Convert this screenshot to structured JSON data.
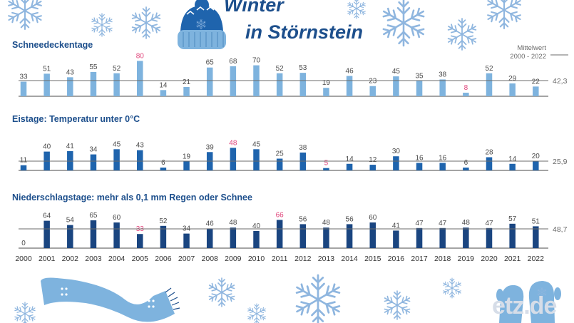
{
  "title": {
    "line1": "Winter",
    "line2": "in Störnstein"
  },
  "mean_caption": {
    "line1": "Mittelwert",
    "line2": "2000 - 2022"
  },
  "watermark": "etz.de",
  "colors": {
    "title": "#1d4f8c",
    "series1": "#7eb3de",
    "series2": "#1f64ad",
    "series3": "#1a4580",
    "highlight": "#e0457b",
    "axis": "#4a4a4a",
    "snowflake": "#8fb6df"
  },
  "chart_data": [
    {
      "type": "bar",
      "title": "Schneedeckentage",
      "categories": [
        "2000",
        "2001",
        "2002",
        "2003",
        "2004",
        "2005",
        "2006",
        "2007",
        "2008",
        "2009",
        "2010",
        "2011",
        "2012",
        "2013",
        "2014",
        "2015",
        "2016",
        "2017",
        "2018",
        "2019",
        "2020",
        "2021",
        "2022"
      ],
      "values": [
        33,
        51,
        43,
        55,
        52,
        80,
        14,
        21,
        65,
        68,
        70,
        52,
        53,
        19,
        46,
        23,
        45,
        35,
        38,
        8,
        52,
        29,
        22
      ],
      "mean": 42.3,
      "mean_label": "42,3",
      "highlighted": [
        5,
        19
      ]
    },
    {
      "type": "bar",
      "title": "Eistage: Temperatur unter 0°C",
      "categories": [
        "2000",
        "2001",
        "2002",
        "2003",
        "2004",
        "2005",
        "2006",
        "2007",
        "2008",
        "2009",
        "2010",
        "2011",
        "2012",
        "2013",
        "2014",
        "2015",
        "2016",
        "2017",
        "2018",
        "2019",
        "2020",
        "2021",
        "2022"
      ],
      "values": [
        11,
        40,
        41,
        34,
        45,
        43,
        6,
        19,
        39,
        48,
        45,
        25,
        38,
        5,
        14,
        12,
        30,
        16,
        16,
        6,
        28,
        14,
        20
      ],
      "mean": 25.9,
      "mean_label": "25,9",
      "highlighted": [
        9,
        13
      ]
    },
    {
      "type": "bar",
      "title": "Niederschlagstage: mehr als 0,1 mm Regen oder Schnee",
      "categories": [
        "2000",
        "2001",
        "2002",
        "2003",
        "2004",
        "2005",
        "2006",
        "2007",
        "2008",
        "2009",
        "2010",
        "2011",
        "2012",
        "2013",
        "2014",
        "2015",
        "2016",
        "2017",
        "2018",
        "2019",
        "2020",
        "2021",
        "2022"
      ],
      "values": [
        0,
        64,
        54,
        65,
        60,
        33,
        52,
        34,
        46,
        48,
        40,
        66,
        56,
        48,
        56,
        60,
        41,
        47,
        47,
        48,
        47,
        57,
        51
      ],
      "mean": 48.7,
      "mean_label": "48,7",
      "highlighted": [
        5,
        11
      ]
    }
  ],
  "decorations": [
    "snowflake-icon",
    "winter-hat-icon",
    "scarf-icon",
    "mittens-icon"
  ]
}
